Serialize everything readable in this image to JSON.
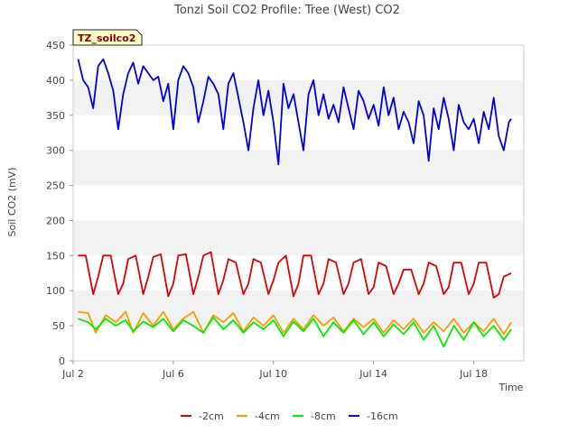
{
  "chart_data": {
    "type": "line",
    "title": "Tonzi Soil CO2 Profile: Tree (West) CO2",
    "badge": "TZ_soilco2",
    "xlabel": "Time",
    "ylabel": "Soil CO2 (mV)",
    "xlim": [
      2.0,
      20.0
    ],
    "ylim": [
      0,
      450
    ],
    "x_ticks": [
      {
        "value": 2,
        "label": "Jul 2"
      },
      {
        "value": 6,
        "label": "Jul 6"
      },
      {
        "value": 10,
        "label": "Jul 10"
      },
      {
        "value": 14,
        "label": "Jul 14"
      },
      {
        "value": 18,
        "label": "Jul 18"
      }
    ],
    "y_ticks": [
      0,
      50,
      100,
      150,
      200,
      250,
      300,
      350,
      400,
      450
    ],
    "grid": "alternating horizontal bands",
    "legend_position": "bottom",
    "series": [
      {
        "name": "-2cm",
        "color": "#e00000",
        "x": [
          2.2,
          2.5,
          2.8,
          3.0,
          3.2,
          3.5,
          3.8,
          4.0,
          4.2,
          4.5,
          4.8,
          5.0,
          5.2,
          5.5,
          5.8,
          6.0,
          6.2,
          6.5,
          6.8,
          7.0,
          7.2,
          7.5,
          7.8,
          8.0,
          8.2,
          8.5,
          8.8,
          9.0,
          9.2,
          9.5,
          9.8,
          10.0,
          10.2,
          10.5,
          10.8,
          11.0,
          11.2,
          11.5,
          11.8,
          12.0,
          12.2,
          12.5,
          12.8,
          13.0,
          13.2,
          13.5,
          13.8,
          14.0,
          14.2,
          14.5,
          14.8,
          15.0,
          15.2,
          15.5,
          15.8,
          16.0,
          16.2,
          16.5,
          16.8,
          17.0,
          17.2,
          17.5,
          17.8,
          18.0,
          18.2,
          18.5,
          18.8,
          19.0,
          19.2,
          19.5
        ],
        "values": [
          150,
          150,
          95,
          120,
          150,
          150,
          95,
          110,
          145,
          150,
          95,
          120,
          148,
          152,
          92,
          110,
          150,
          152,
          95,
          120,
          150,
          155,
          95,
          115,
          145,
          140,
          95,
          110,
          145,
          140,
          95,
          115,
          140,
          150,
          92,
          110,
          150,
          150,
          95,
          110,
          145,
          140,
          95,
          110,
          140,
          145,
          95,
          105,
          140,
          135,
          95,
          110,
          130,
          130,
          95,
          110,
          140,
          135,
          95,
          105,
          140,
          140,
          95,
          110,
          140,
          140,
          90,
          95,
          120,
          125
        ]
      },
      {
        "name": "-4cm",
        "color": "#ff9900",
        "x": [
          2.2,
          2.6,
          2.9,
          3.3,
          3.7,
          4.1,
          4.4,
          4.8,
          5.2,
          5.6,
          6.0,
          6.4,
          6.8,
          7.2,
          7.6,
          8.0,
          8.4,
          8.8,
          9.2,
          9.6,
          10.0,
          10.4,
          10.8,
          11.2,
          11.6,
          12.0,
          12.4,
          12.8,
          13.2,
          13.6,
          14.0,
          14.4,
          14.8,
          15.2,
          15.6,
          16.0,
          16.4,
          16.8,
          17.2,
          17.6,
          18.0,
          18.4,
          18.8,
          19.2,
          19.5
        ],
        "values": [
          70,
          68,
          40,
          65,
          55,
          70,
          40,
          68,
          50,
          70,
          45,
          60,
          70,
          40,
          65,
          55,
          68,
          42,
          62,
          50,
          65,
          40,
          60,
          45,
          65,
          50,
          62,
          42,
          60,
          48,
          60,
          40,
          58,
          45,
          60,
          40,
          55,
          42,
          60,
          40,
          55,
          42,
          60,
          38,
          55
        ]
      },
      {
        "name": "-8cm",
        "color": "#00ee00",
        "x": [
          2.2,
          2.6,
          2.9,
          3.3,
          3.7,
          4.1,
          4.4,
          4.8,
          5.2,
          5.6,
          6.0,
          6.4,
          6.8,
          7.2,
          7.6,
          8.0,
          8.4,
          8.8,
          9.2,
          9.6,
          10.0,
          10.4,
          10.8,
          11.2,
          11.6,
          12.0,
          12.4,
          12.8,
          13.2,
          13.6,
          14.0,
          14.4,
          14.8,
          15.2,
          15.6,
          16.0,
          16.4,
          16.8,
          17.2,
          17.6,
          18.0,
          18.4,
          18.8,
          19.2,
          19.5
        ],
        "values": [
          60,
          55,
          45,
          60,
          50,
          58,
          42,
          56,
          48,
          60,
          42,
          58,
          50,
          40,
          62,
          45,
          58,
          40,
          55,
          45,
          58,
          35,
          56,
          42,
          60,
          35,
          55,
          40,
          58,
          38,
          55,
          35,
          52,
          38,
          55,
          30,
          50,
          20,
          50,
          30,
          55,
          35,
          50,
          30,
          45
        ]
      },
      {
        "name": "-16cm",
        "color": "#0000dd",
        "x": [
          2.2,
          2.4,
          2.6,
          2.8,
          3.0,
          3.2,
          3.4,
          3.6,
          3.8,
          4.0,
          4.2,
          4.4,
          4.6,
          4.8,
          5.0,
          5.2,
          5.4,
          5.6,
          5.8,
          6.0,
          6.2,
          6.4,
          6.6,
          6.8,
          7.0,
          7.2,
          7.4,
          7.6,
          7.8,
          8.0,
          8.2,
          8.4,
          8.6,
          8.8,
          9.0,
          9.2,
          9.4,
          9.6,
          9.8,
          10.0,
          10.2,
          10.4,
          10.6,
          10.8,
          11.0,
          11.2,
          11.4,
          11.6,
          11.8,
          12.0,
          12.2,
          12.4,
          12.6,
          12.8,
          13.0,
          13.2,
          13.4,
          13.6,
          13.8,
          14.0,
          14.2,
          14.4,
          14.6,
          14.8,
          15.0,
          15.2,
          15.4,
          15.6,
          15.8,
          16.0,
          16.2,
          16.4,
          16.6,
          16.8,
          17.0,
          17.2,
          17.4,
          17.6,
          17.8,
          18.0,
          18.2,
          18.4,
          18.6,
          18.8,
          19.0,
          19.2,
          19.4,
          19.5
        ],
        "values": [
          430,
          400,
          390,
          360,
          420,
          430,
          410,
          385,
          330,
          380,
          410,
          425,
          395,
          420,
          410,
          400,
          405,
          370,
          395,
          330,
          400,
          420,
          410,
          390,
          340,
          370,
          405,
          395,
          380,
          330,
          395,
          410,
          375,
          340,
          300,
          360,
          400,
          350,
          385,
          340,
          280,
          395,
          360,
          380,
          340,
          300,
          380,
          400,
          350,
          380,
          345,
          365,
          340,
          390,
          360,
          330,
          385,
          370,
          345,
          365,
          335,
          390,
          350,
          375,
          330,
          355,
          340,
          310,
          370,
          350,
          285,
          360,
          330,
          375,
          345,
          300,
          365,
          340,
          330,
          345,
          310,
          355,
          330,
          375,
          320,
          300,
          340,
          345
        ]
      }
    ]
  }
}
